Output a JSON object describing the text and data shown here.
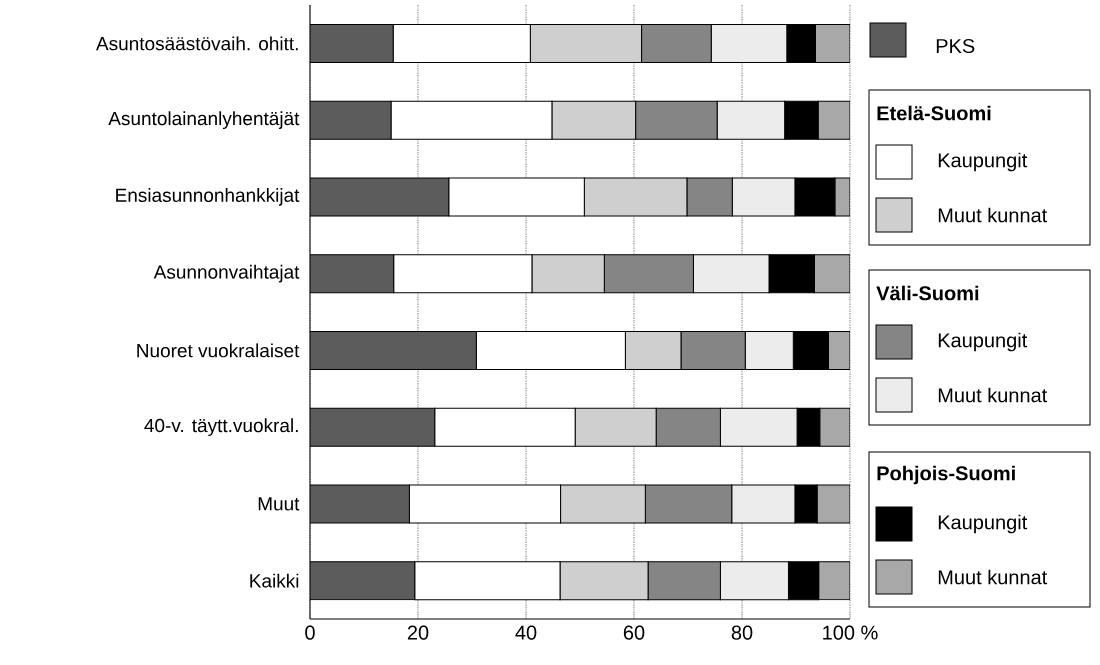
{
  "chart_data": {
    "type": "bar",
    "orientation": "horizontal",
    "stacked": true,
    "categories": [
      "Asuntosäästövaih. ohitt.",
      "Asuntolainanlyhentäjät",
      "Ensiasunnonhankkijat",
      "Asunnonvaihtajat",
      "Nuoret vuokralaiset",
      "40-v. täytt.vuokral.",
      "Muut",
      "Kaikki"
    ],
    "series": [
      {
        "name": "PKS",
        "color": "#5c5c5c",
        "values": [
          15.4,
          15.0,
          25.7,
          15.5,
          30.8,
          23.1,
          18.4,
          19.4
        ]
      },
      {
        "name": "Kaupungit",
        "color": "#ffffff",
        "values": [
          25.4,
          29.8,
          25.1,
          25.6,
          27.6,
          26.0,
          28.0,
          26.9
        ]
      },
      {
        "name": "Muut kunnat",
        "color": "#cfcfcf",
        "values": [
          20.6,
          15.5,
          19.0,
          13.4,
          10.3,
          15.0,
          15.7,
          16.3
        ]
      },
      {
        "name": "Kaupungit",
        "color": "#858585",
        "values": [
          12.9,
          15.1,
          8.4,
          16.5,
          11.9,
          11.9,
          16.0,
          13.4
        ]
      },
      {
        "name": "Muut kunnat",
        "color": "#ececec",
        "values": [
          14.0,
          12.5,
          11.6,
          14.0,
          8.9,
          14.2,
          11.7,
          12.6
        ]
      },
      {
        "name": "Kaupungit",
        "color": "#000000",
        "values": [
          5.3,
          6.2,
          7.4,
          8.4,
          6.5,
          4.2,
          4.1,
          5.6
        ]
      },
      {
        "name": "Muut kunnat",
        "color": "#a8a8a8",
        "values": [
          6.4,
          5.9,
          2.8,
          6.6,
          4.0,
          5.6,
          6.1,
          5.8
        ]
      }
    ],
    "annotations": [
      "Etelä-Suomi",
      "Väli-Suomi",
      "Pohjois-Suomi"
    ],
    "xlim": [
      0,
      100
    ],
    "xticks": [
      0,
      20,
      40,
      60,
      80,
      {
        "value": 100,
        "label": "100 %"
      }
    ],
    "grid": "x",
    "legend": "right"
  }
}
